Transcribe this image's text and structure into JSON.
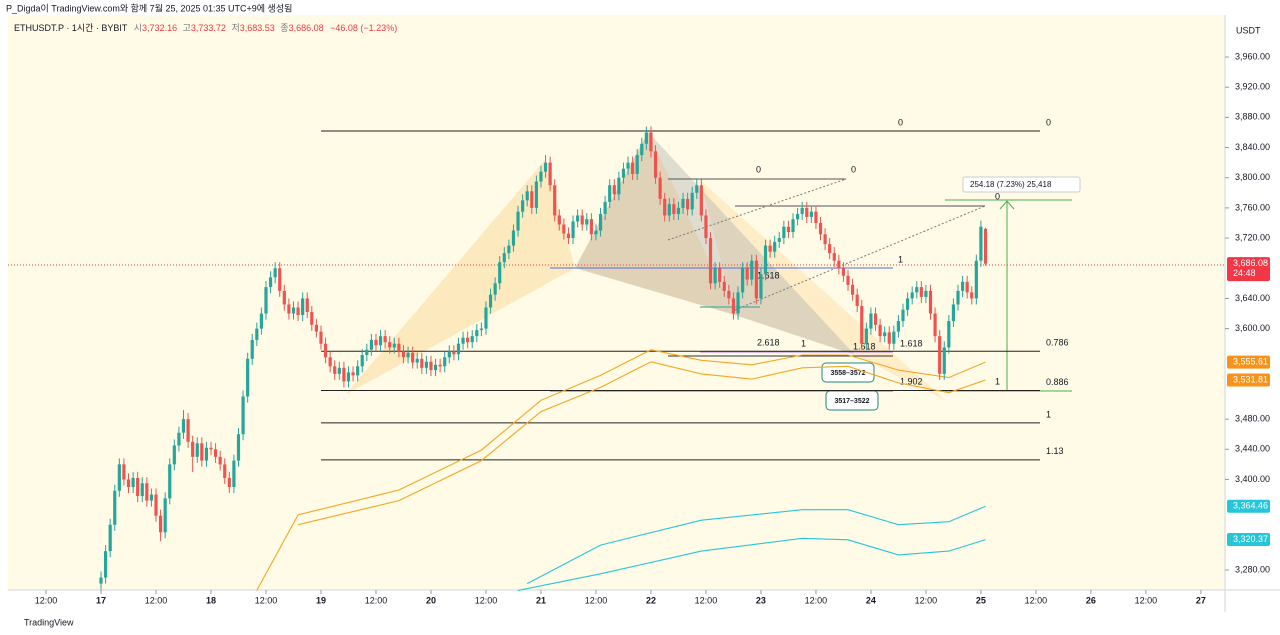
{
  "header": {
    "credit": "P_Digda이 TradingView.com와 함께 7월 25, 2025 01:35 UTC+9에 생성됨",
    "symbol": "ETHUSDT.P · 1시간 · BYBIT",
    "ohlc": [
      [
        "시",
        "3,732.16"
      ],
      [
        "고",
        "3,733.72"
      ],
      [
        "저",
        "3,683.53"
      ],
      [
        "종",
        "3,686.08"
      ]
    ],
    "change": "−46.08 (−1.23%)",
    "currency": "USDT"
  },
  "footer": {
    "brand": "TradingView"
  },
  "chart_data": {
    "type": "candlestick",
    "up_color": "#26a69a",
    "down_color": "#ef5350",
    "ylim": [
      3253.5,
      4015.7
    ],
    "xlim": [
      -22.04,
      245.26
    ],
    "yticks": [
      {
        "value": 3960,
        "label": "3,960.00"
      },
      {
        "value": 3920,
        "label": "3,920.00"
      },
      {
        "value": 3880,
        "label": "3,880.00"
      },
      {
        "value": 3840,
        "label": "3,840.00"
      },
      {
        "value": 3800,
        "label": "3,800.00"
      },
      {
        "value": 3760,
        "label": "3,760.00"
      },
      {
        "value": 3720,
        "label": "3,720.00"
      },
      {
        "value": 3640,
        "label": "3,640.00"
      },
      {
        "value": 3600,
        "label": "3,600.00"
      },
      {
        "value": 3480,
        "label": "3,480.00"
      },
      {
        "value": 3440,
        "label": "3,440.00"
      },
      {
        "value": 3400,
        "label": "3,400.00"
      },
      {
        "value": 3280,
        "label": "3,280.00"
      }
    ],
    "xticks": [
      {
        "value": -12,
        "label": "12:00"
      },
      {
        "value": 0,
        "label": "17"
      },
      {
        "value": 12,
        "label": "12:00"
      },
      {
        "value": 24,
        "label": "18"
      },
      {
        "value": 36,
        "label": "12:00"
      },
      {
        "value": 48,
        "label": "19"
      },
      {
        "value": 60,
        "label": "12:00"
      },
      {
        "value": 72,
        "label": "20"
      },
      {
        "value": 84,
        "label": "12:00"
      },
      {
        "value": 96,
        "label": "21"
      },
      {
        "value": 108,
        "label": "12:00"
      },
      {
        "value": 120,
        "label": "22"
      },
      {
        "value": 132,
        "label": "12:00"
      },
      {
        "value": 144,
        "label": "23"
      },
      {
        "value": 156,
        "label": "12:00"
      },
      {
        "value": 168,
        "label": "24"
      },
      {
        "value": 180,
        "label": "12:00"
      },
      {
        "value": 192,
        "label": "25"
      },
      {
        "value": 204,
        "label": "12:00"
      },
      {
        "value": 216,
        "label": "26"
      },
      {
        "value": 228,
        "label": "12:00"
      },
      {
        "value": 240,
        "label": "27"
      }
    ],
    "candles": [
      [
        3262,
        3278,
        3254,
        3270
      ],
      [
        3270,
        3313,
        3262,
        3305
      ],
      [
        3305,
        3348,
        3297,
        3340
      ],
      [
        3340,
        3393,
        3332,
        3385
      ],
      [
        3385,
        3428,
        3377,
        3420
      ],
      [
        3420,
        3428,
        3392,
        3400
      ],
      [
        3400,
        3408,
        3382,
        3390
      ],
      [
        3390,
        3410,
        3382,
        3402
      ],
      [
        3402,
        3410,
        3370,
        3378
      ],
      [
        3378,
        3403,
        3370,
        3395
      ],
      [
        3395,
        3403,
        3364,
        3372
      ],
      [
        3372,
        3388,
        3364,
        3380
      ],
      [
        3380,
        3388,
        3344,
        3352
      ],
      [
        3352,
        3360,
        3318,
        3330
      ],
      [
        3330,
        3383,
        3322,
        3375
      ],
      [
        3375,
        3428,
        3367,
        3420
      ],
      [
        3420,
        3453,
        3412,
        3445
      ],
      [
        3445,
        3470,
        3437,
        3462
      ],
      [
        3462,
        3492,
        3454,
        3480
      ],
      [
        3480,
        3488,
        3442,
        3450
      ],
      [
        3450,
        3458,
        3410,
        3430
      ],
      [
        3430,
        3456,
        3422,
        3448
      ],
      [
        3448,
        3456,
        3417,
        3425
      ],
      [
        3425,
        3450,
        3417,
        3442
      ],
      [
        3442,
        3450,
        3432,
        3440
      ],
      [
        3440,
        3448,
        3422,
        3430
      ],
      [
        3430,
        3438,
        3412,
        3420
      ],
      [
        3420,
        3428,
        3394,
        3402
      ],
      [
        3402,
        3410,
        3382,
        3390
      ],
      [
        3390,
        3433,
        3382,
        3425
      ],
      [
        3425,
        3468,
        3417,
        3460
      ],
      [
        3460,
        3518,
        3452,
        3510
      ],
      [
        3510,
        3568,
        3502,
        3560
      ],
      [
        3560,
        3593,
        3552,
        3585
      ],
      [
        3585,
        3608,
        3577,
        3600
      ],
      [
        3600,
        3628,
        3592,
        3620
      ],
      [
        3620,
        3663,
        3612,
        3655
      ],
      [
        3655,
        3676,
        3647,
        3668
      ],
      [
        3668,
        3688,
        3660,
        3680
      ],
      [
        3680,
        3688,
        3642,
        3650
      ],
      [
        3650,
        3658,
        3624,
        3632
      ],
      [
        3632,
        3640,
        3612,
        3620
      ],
      [
        3620,
        3636,
        3612,
        3628
      ],
      [
        3628,
        3636,
        3610,
        3618
      ],
      [
        3618,
        3648,
        3610,
        3640
      ],
      [
        3640,
        3648,
        3614,
        3622
      ],
      [
        3622,
        3630,
        3597,
        3605
      ],
      [
        3605,
        3613,
        3588,
        3596
      ],
      [
        3596,
        3604,
        3572,
        3580
      ],
      [
        3580,
        3588,
        3554,
        3562
      ],
      [
        3562,
        3570,
        3542,
        3550
      ],
      [
        3550,
        3558,
        3532,
        3540
      ],
      [
        3540,
        3556,
        3532,
        3548
      ],
      [
        3548,
        3556,
        3522,
        3530
      ],
      [
        3530,
        3550,
        3522,
        3542
      ],
      [
        3542,
        3550,
        3530,
        3538
      ],
      [
        3538,
        3558,
        3530,
        3550
      ],
      [
        3550,
        3573,
        3542,
        3565
      ],
      [
        3565,
        3580,
        3557,
        3572
      ],
      [
        3572,
        3593,
        3564,
        3585
      ],
      [
        3585,
        3593,
        3570,
        3578
      ],
      [
        3578,
        3598,
        3570,
        3590
      ],
      [
        3590,
        3598,
        3574,
        3582
      ],
      [
        3582,
        3590,
        3567,
        3575
      ],
      [
        3575,
        3588,
        3567,
        3580
      ],
      [
        3580,
        3588,
        3562,
        3570
      ],
      [
        3570,
        3578,
        3554,
        3562
      ],
      [
        3562,
        3576,
        3554,
        3568
      ],
      [
        3568,
        3576,
        3547,
        3555
      ],
      [
        3555,
        3568,
        3547,
        3560
      ],
      [
        3560,
        3568,
        3540,
        3548
      ],
      [
        3548,
        3564,
        3540,
        3556
      ],
      [
        3556,
        3564,
        3537,
        3545
      ],
      [
        3545,
        3560,
        3537,
        3552
      ],
      [
        3552,
        3560,
        3542,
        3550
      ],
      [
        3550,
        3570,
        3542,
        3562
      ],
      [
        3562,
        3578,
        3554,
        3570
      ],
      [
        3570,
        3578,
        3558,
        3566
      ],
      [
        3566,
        3588,
        3558,
        3580
      ],
      [
        3580,
        3596,
        3572,
        3588
      ],
      [
        3588,
        3596,
        3574,
        3582
      ],
      [
        3582,
        3598,
        3574,
        3590
      ],
      [
        3590,
        3606,
        3582,
        3598
      ],
      [
        3598,
        3608,
        3590,
        3600
      ],
      [
        3600,
        3636,
        3592,
        3628
      ],
      [
        3628,
        3653,
        3620,
        3645
      ],
      [
        3645,
        3668,
        3637,
        3660
      ],
      [
        3660,
        3696,
        3652,
        3688
      ],
      [
        3688,
        3708,
        3680,
        3700
      ],
      [
        3700,
        3718,
        3692,
        3710
      ],
      [
        3710,
        3738,
        3702,
        3730
      ],
      [
        3730,
        3763,
        3722,
        3755
      ],
      [
        3755,
        3778,
        3747,
        3770
      ],
      [
        3770,
        3790,
        3762,
        3782
      ],
      [
        3782,
        3790,
        3752,
        3760
      ],
      [
        3760,
        3803,
        3752,
        3795
      ],
      [
        3795,
        3816,
        3787,
        3808
      ],
      [
        3808,
        3830,
        3800,
        3820
      ],
      [
        3820,
        3828,
        3782,
        3790
      ],
      [
        3790,
        3798,
        3742,
        3750
      ],
      [
        3750,
        3758,
        3730,
        3738
      ],
      [
        3738,
        3746,
        3718,
        3726
      ],
      [
        3726,
        3734,
        3712,
        3720
      ],
      [
        3720,
        3750,
        3712,
        3742
      ],
      [
        3742,
        3758,
        3734,
        3750
      ],
      [
        3750,
        3758,
        3730,
        3738
      ],
      [
        3738,
        3753,
        3730,
        3745
      ],
      [
        3745,
        3753,
        3717,
        3725
      ],
      [
        3725,
        3738,
        3717,
        3730
      ],
      [
        3730,
        3760,
        3722,
        3752
      ],
      [
        3752,
        3776,
        3744,
        3768
      ],
      [
        3768,
        3798,
        3760,
        3790
      ],
      [
        3790,
        3798,
        3770,
        3778
      ],
      [
        3778,
        3808,
        3770,
        3800
      ],
      [
        3800,
        3820,
        3792,
        3812
      ],
      [
        3812,
        3828,
        3804,
        3820
      ],
      [
        3820,
        3828,
        3797,
        3805
      ],
      [
        3805,
        3838,
        3797,
        3830
      ],
      [
        3830,
        3853,
        3822,
        3845
      ],
      [
        3845,
        3868,
        3837,
        3860
      ],
      [
        3860,
        3868,
        3827,
        3835
      ],
      [
        3835,
        3843,
        3792,
        3800
      ],
      [
        3800,
        3808,
        3764,
        3772
      ],
      [
        3772,
        3780,
        3742,
        3750
      ],
      [
        3750,
        3773,
        3742,
        3765
      ],
      [
        3765,
        3773,
        3744,
        3752
      ],
      [
        3752,
        3768,
        3744,
        3760
      ],
      [
        3760,
        3780,
        3752,
        3772
      ],
      [
        3772,
        3780,
        3750,
        3758
      ],
      [
        3758,
        3788,
        3750,
        3780
      ],
      [
        3780,
        3798,
        3772,
        3790
      ],
      [
        3790,
        3798,
        3742,
        3750
      ],
      [
        3750,
        3758,
        3712,
        3720
      ],
      [
        3720,
        3728,
        3652,
        3660
      ],
      [
        3660,
        3688,
        3652,
        3680
      ],
      [
        3680,
        3688,
        3654,
        3662
      ],
      [
        3662,
        3670,
        3642,
        3650
      ],
      [
        3650,
        3658,
        3632,
        3640
      ],
      [
        3640,
        3648,
        3612,
        3620
      ],
      [
        3620,
        3656,
        3612,
        3648
      ],
      [
        3648,
        3688,
        3640,
        3680
      ],
      [
        3680,
        3688,
        3657,
        3665
      ],
      [
        3665,
        3698,
        3657,
        3690
      ],
      [
        3690,
        3698,
        3632,
        3640
      ],
      [
        3640,
        3680,
        3632,
        3672
      ],
      [
        3672,
        3718,
        3664,
        3710
      ],
      [
        3710,
        3718,
        3694,
        3702
      ],
      [
        3702,
        3723,
        3694,
        3715
      ],
      [
        3715,
        3728,
        3707,
        3720
      ],
      [
        3720,
        3743,
        3712,
        3735
      ],
      [
        3735,
        3743,
        3720,
        3728
      ],
      [
        3728,
        3753,
        3720,
        3745
      ],
      [
        3745,
        3760,
        3737,
        3752
      ],
      [
        3752,
        3768,
        3744,
        3760
      ],
      [
        3760,
        3768,
        3740,
        3748
      ],
      [
        3748,
        3763,
        3740,
        3755
      ],
      [
        3755,
        3763,
        3732,
        3740
      ],
      [
        3740,
        3748,
        3717,
        3725
      ],
      [
        3725,
        3733,
        3704,
        3712
      ],
      [
        3712,
        3720,
        3692,
        3700
      ],
      [
        3700,
        3708,
        3682,
        3690
      ],
      [
        3690,
        3698,
        3672,
        3680
      ],
      [
        3680,
        3688,
        3662,
        3670
      ],
      [
        3670,
        3678,
        3650,
        3658
      ],
      [
        3658,
        3666,
        3637,
        3645
      ],
      [
        3645,
        3653,
        3622,
        3630
      ],
      [
        3630,
        3638,
        3572,
        3580
      ],
      [
        3580,
        3608,
        3572,
        3600
      ],
      [
        3600,
        3628,
        3592,
        3620
      ],
      [
        3620,
        3628,
        3597,
        3605
      ],
      [
        3605,
        3613,
        3582,
        3590
      ],
      [
        3590,
        3603,
        3582,
        3595
      ],
      [
        3595,
        3603,
        3572,
        3580
      ],
      [
        3580,
        3604,
        3572,
        3596
      ],
      [
        3596,
        3618,
        3588,
        3610
      ],
      [
        3610,
        3633,
        3602,
        3625
      ],
      [
        3625,
        3648,
        3617,
        3640
      ],
      [
        3640,
        3656,
        3632,
        3648
      ],
      [
        3648,
        3663,
        3640,
        3655
      ],
      [
        3655,
        3663,
        3634,
        3642
      ],
      [
        3642,
        3658,
        3634,
        3650
      ],
      [
        3650,
        3658,
        3612,
        3620
      ],
      [
        3620,
        3628,
        3582,
        3590
      ],
      [
        3590,
        3598,
        3532,
        3540
      ],
      [
        3540,
        3583,
        3532,
        3575
      ],
      [
        3575,
        3618,
        3567,
        3610
      ],
      [
        3610,
        3640,
        3602,
        3632
      ],
      [
        3632,
        3658,
        3624,
        3650
      ],
      [
        3650,
        3670,
        3642,
        3662
      ],
      [
        3662,
        3670,
        3640,
        3648
      ],
      [
        3648,
        3656,
        3632,
        3640
      ],
      [
        3640,
        3698,
        3632,
        3690
      ],
      [
        3690,
        3743,
        3682,
        3735
      ],
      [
        3732.16,
        3733.72,
        3683.53,
        3686.08
      ]
    ],
    "indicators": [
      {
        "color": "#f5a623",
        "x": [
          34,
          43,
          65,
          83,
          96,
          109,
          120,
          131,
          142,
          153,
          163,
          174,
          185,
          193
        ],
        "values": [
          3253,
          3353,
          3386,
          3439,
          3505,
          3538,
          3572,
          3558,
          3552,
          3565,
          3565,
          3545,
          3535,
          3555.61
        ]
      },
      {
        "color": "#f5a623",
        "x": [
          34,
          43,
          65,
          83,
          96,
          109,
          120,
          131,
          142,
          153,
          163,
          174,
          185,
          193
        ],
        "values": [
          null,
          3340,
          3372,
          3425,
          3490,
          3522,
          3556,
          3540,
          3533,
          3548,
          3550,
          3528,
          3515,
          3531.81
        ]
      },
      {
        "color": "#26c6da",
        "x": [
          93,
          109,
          131,
          153,
          163,
          174,
          185,
          193
        ],
        "values": [
          3262,
          3313,
          3346,
          3360,
          3360,
          3340,
          3344,
          3364.46
        ]
      },
      {
        "color": "#26c6da",
        "x": [
          91,
          109,
          131,
          153,
          163,
          174,
          185,
          193
        ],
        "values": [
          3253,
          3275,
          3305,
          3322,
          3320,
          3300,
          3305,
          3320.37
        ]
      }
    ],
    "fib_levels": [
      {
        "label": "0",
        "price": 3862
      },
      {
        "label": "0.786",
        "price": 3570
      },
      {
        "label": "0.886",
        "price": 3518
      },
      {
        "label": "1",
        "price": 3475
      },
      {
        "label": "1.13",
        "price": 3426
      }
    ],
    "price_tags": [
      {
        "value": 3686.08,
        "label": "3,686.08",
        "sub": "24:48",
        "color": "#f23645"
      },
      {
        "value": 3555.61,
        "label": "3,555.61",
        "color": "#f7931a"
      },
      {
        "value": 3531.81,
        "label": "3,531.81",
        "color": "#f7931a"
      },
      {
        "value": 3364.46,
        "label": "3,364.46",
        "color": "#26c6da"
      },
      {
        "value": 3320.37,
        "label": "3,320.37",
        "color": "#26c6da"
      }
    ],
    "annotations": {
      "a0": "0",
      "b0": "0",
      "c0": "0",
      "d0": "0",
      "d1": "1",
      "b1": "1",
      "e1": "1.618",
      "f2618": "2.618",
      "f1": "1",
      "g1618": "1.618",
      "h1618": "1.618",
      "h1902": "1.902",
      "box1": "3558–3572",
      "box2": "3517–3522",
      "measure": "254.18 (7.23%) 25,418"
    }
  }
}
